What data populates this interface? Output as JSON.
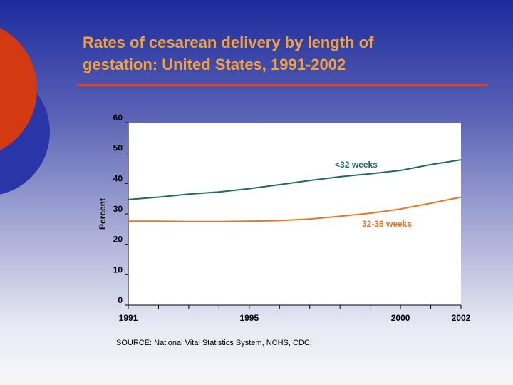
{
  "slide": {
    "title_line1": "Rates of cesarean delivery by length of",
    "title_line2": "gestation: United States, 1991-2002",
    "source": "SOURCE: National Vital Statistics System, NCHS, CDC."
  },
  "colors": {
    "title": "#f2a23c",
    "rule": "#e0402a",
    "series_lt32": "#1f6b5e",
    "series_32_36": "#e8761e"
  },
  "chart_data": {
    "type": "line",
    "ylabel": "Percent",
    "xlabel": "",
    "ylim": [
      0,
      60
    ],
    "xlim": [
      1991,
      2002
    ],
    "yticks": [
      0,
      10,
      20,
      30,
      40,
      50,
      60
    ],
    "xticks": [
      1991,
      1995,
      2000,
      2002
    ],
    "grid": false,
    "series": [
      {
        "name": "<32 weeks",
        "x": [
          1991,
          1992,
          1993,
          1994,
          1995,
          1996,
          1997,
          1998,
          1999,
          2000,
          2001,
          2002
        ],
        "values": [
          34.7,
          35.5,
          36.5,
          37.2,
          38.3,
          39.6,
          41.0,
          42.2,
          43.2,
          44.3,
          46.2,
          47.8
        ]
      },
      {
        "name": "32-36 weeks",
        "x": [
          1991,
          1992,
          1993,
          1994,
          1995,
          1996,
          1997,
          1998,
          1999,
          2000,
          2001,
          2002
        ],
        "values": [
          27.6,
          27.6,
          27.5,
          27.5,
          27.6,
          27.8,
          28.3,
          29.2,
          30.2,
          31.6,
          33.5,
          35.5
        ]
      }
    ]
  }
}
